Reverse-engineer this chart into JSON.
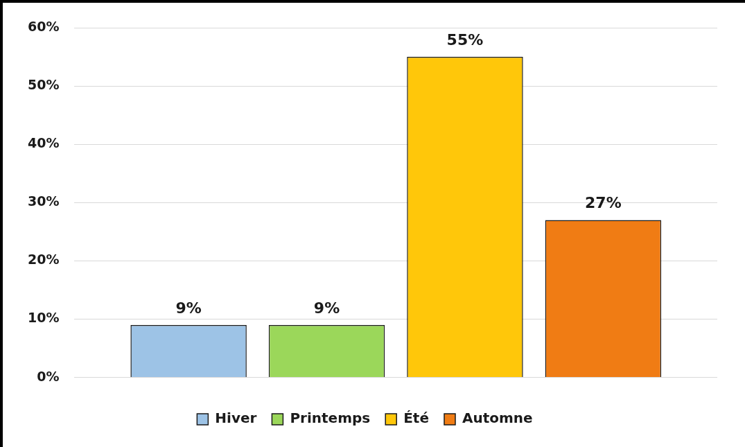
{
  "chart_data": {
    "type": "bar",
    "categories": [
      null
    ],
    "series": [
      {
        "name": "Hiver",
        "color": "#9dc3e6",
        "values": [
          9
        ],
        "value_labels": [
          "9%"
        ]
      },
      {
        "name": "Printemps",
        "color": "#9bd75a",
        "values": [
          9
        ],
        "value_labels": [
          "9%"
        ]
      },
      {
        "name": "Été",
        "color": "#ffc70a",
        "values": [
          55
        ],
        "value_labels": [
          "55%"
        ]
      },
      {
        "name": "Automne",
        "color": "#f07c14",
        "values": [
          27
        ],
        "value_labels": [
          "27%"
        ]
      }
    ],
    "ylim": [
      0,
      60
    ],
    "yticks": [
      {
        "value": 0,
        "label": "0%"
      },
      {
        "value": 10,
        "label": "10%"
      },
      {
        "value": 20,
        "label": "20%"
      },
      {
        "value": 30,
        "label": "30%"
      },
      {
        "value": 40,
        "label": "40%"
      },
      {
        "value": 50,
        "label": "50%"
      },
      {
        "value": 60,
        "label": "60%"
      }
    ],
    "grid": "y",
    "legend": "bottom"
  }
}
